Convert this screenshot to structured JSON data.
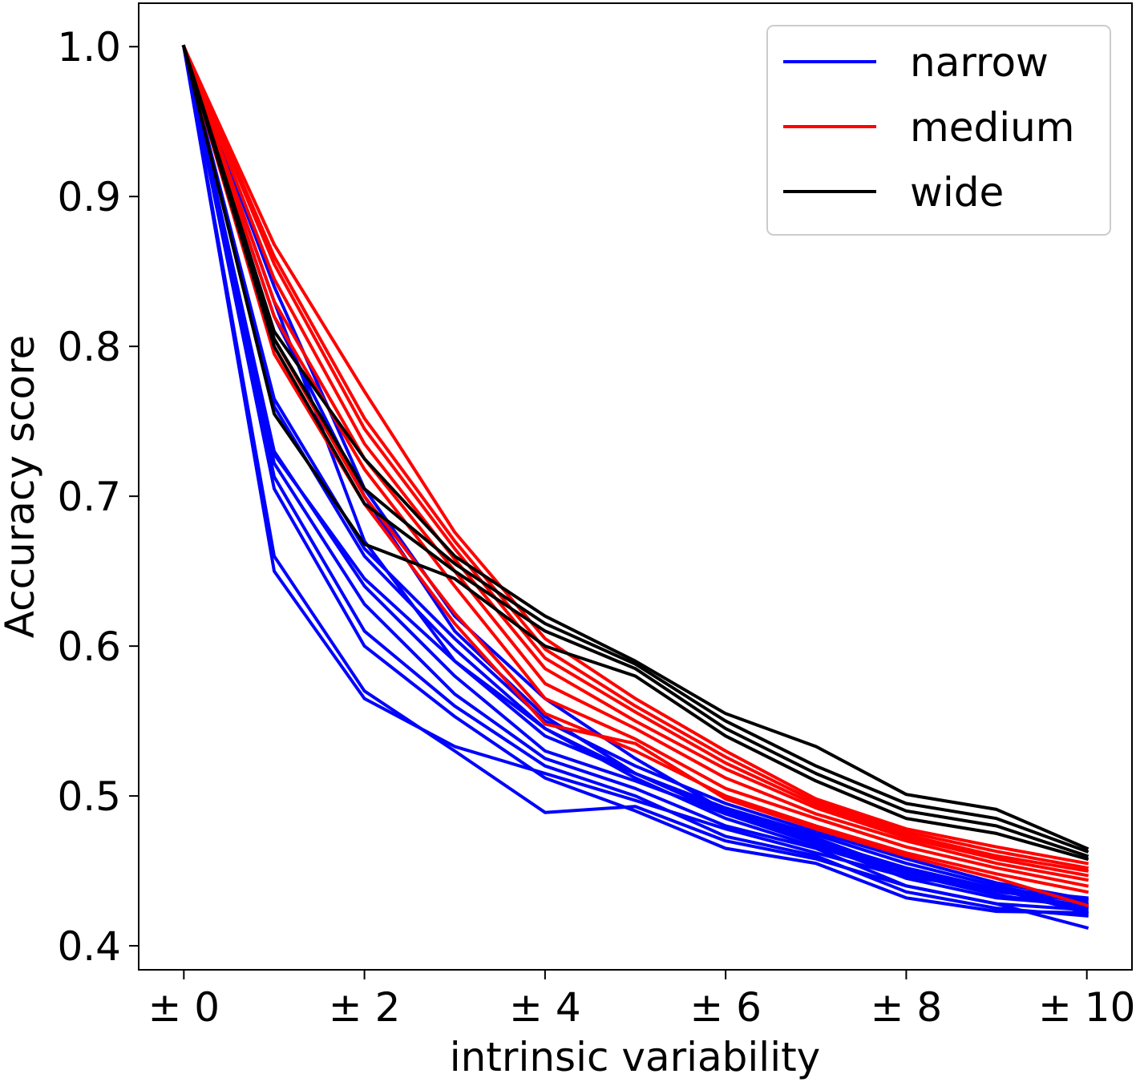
{
  "chart_data": {
    "type": "line",
    "xlabel": "intrinsic variability",
    "ylabel": "Accuracy score",
    "x": [
      0,
      1,
      2,
      3,
      4,
      5,
      6,
      7,
      8,
      9,
      10
    ],
    "xlim": [
      -0.5,
      10.5
    ],
    "ylim": [
      0.384,
      1.029
    ],
    "x_ticks": [
      0,
      2,
      4,
      6,
      8,
      10
    ],
    "x_tick_labels": [
      "± 0",
      "± 2",
      "± 4",
      "± 6",
      "± 8",
      "± 10"
    ],
    "y_ticks": [
      0.4,
      0.5,
      0.6,
      0.7,
      0.8,
      0.9,
      1.0
    ],
    "y_tick_labels": [
      "0.4",
      "0.5",
      "0.6",
      "0.7",
      "0.8",
      "0.9",
      "1.0"
    ],
    "grid": false,
    "legend": {
      "position": "top-right",
      "entries": [
        {
          "label": "narrow",
          "color": "#0000ff"
        },
        {
          "label": "medium",
          "color": "#ff0000"
        },
        {
          "label": "wide",
          "color": "#000000"
        }
      ]
    },
    "series": [
      {
        "group": "narrow",
        "color": "#0000ff",
        "values": [
          1.0,
          0.65,
          0.565,
          0.533,
          0.515,
          0.497,
          0.478,
          0.462,
          0.446,
          0.438,
          0.432
        ]
      },
      {
        "group": "narrow",
        "color": "#0000ff",
        "values": [
          1.0,
          0.66,
          0.57,
          0.53,
          0.489,
          0.493,
          0.47,
          0.458,
          0.44,
          0.428,
          0.424
        ]
      },
      {
        "group": "narrow",
        "color": "#0000ff",
        "values": [
          1.0,
          0.705,
          0.6,
          0.553,
          0.512,
          0.49,
          0.465,
          0.455,
          0.432,
          0.423,
          0.422
        ]
      },
      {
        "group": "narrow",
        "color": "#0000ff",
        "values": [
          1.0,
          0.713,
          0.61,
          0.56,
          0.52,
          0.5,
          0.473,
          0.46,
          0.436,
          0.425,
          0.42
        ]
      },
      {
        "group": "narrow",
        "color": "#0000ff",
        "values": [
          1.0,
          0.722,
          0.628,
          0.568,
          0.525,
          0.505,
          0.48,
          0.465,
          0.44,
          0.428,
          0.412
        ]
      },
      {
        "group": "narrow",
        "color": "#0000ff",
        "values": [
          1.0,
          0.73,
          0.64,
          0.58,
          0.53,
          0.51,
          0.488,
          0.468,
          0.445,
          0.432,
          0.427
        ]
      },
      {
        "group": "narrow",
        "color": "#0000ff",
        "values": [
          1.0,
          0.728,
          0.645,
          0.59,
          0.54,
          0.515,
          0.49,
          0.472,
          0.45,
          0.436,
          0.43
        ]
      },
      {
        "group": "narrow",
        "color": "#0000ff",
        "values": [
          1.0,
          0.76,
          0.66,
          0.598,
          0.545,
          0.515,
          0.492,
          0.474,
          0.455,
          0.44,
          0.428
        ]
      },
      {
        "group": "narrow",
        "color": "#0000ff",
        "values": [
          1.0,
          0.765,
          0.665,
          0.605,
          0.55,
          0.52,
          0.495,
          0.476,
          0.458,
          0.442,
          0.431
        ]
      },
      {
        "group": "narrow",
        "color": "#0000ff",
        "values": [
          1.0,
          0.82,
          0.7,
          0.61,
          0.553,
          0.515,
          0.488,
          0.47,
          0.452,
          0.438,
          0.422
        ]
      },
      {
        "group": "narrow",
        "color": "#0000ff",
        "values": [
          1.0,
          0.83,
          0.67,
          0.59,
          0.545,
          0.512,
          0.485,
          0.466,
          0.448,
          0.434,
          0.425
        ]
      },
      {
        "group": "narrow",
        "color": "#0000ff",
        "values": [
          1.0,
          0.84,
          0.705,
          0.62,
          0.565,
          0.525,
          0.49,
          0.468,
          0.45,
          0.437,
          0.426
        ]
      },
      {
        "group": "medium",
        "color": "#ff0000",
        "values": [
          1.0,
          0.795,
          0.695,
          0.615,
          0.548,
          0.535,
          0.498,
          0.478,
          0.46,
          0.445,
          0.427
        ]
      },
      {
        "group": "medium",
        "color": "#ff0000",
        "values": [
          1.0,
          0.805,
          0.7,
          0.622,
          0.555,
          0.53,
          0.5,
          0.48,
          0.462,
          0.448,
          0.436
        ]
      },
      {
        "group": "medium",
        "color": "#ff0000",
        "values": [
          1.0,
          0.82,
          0.718,
          0.64,
          0.565,
          0.538,
          0.505,
          0.485,
          0.466,
          0.452,
          0.44
        ]
      },
      {
        "group": "medium",
        "color": "#ff0000",
        "values": [
          1.0,
          0.83,
          0.725,
          0.65,
          0.575,
          0.545,
          0.512,
          0.488,
          0.47,
          0.455,
          0.444
        ]
      },
      {
        "group": "medium",
        "color": "#ff0000",
        "values": [
          1.0,
          0.845,
          0.735,
          0.658,
          0.585,
          0.55,
          0.518,
          0.492,
          0.472,
          0.458,
          0.447
        ]
      },
      {
        "group": "medium",
        "color": "#ff0000",
        "values": [
          1.0,
          0.855,
          0.745,
          0.665,
          0.592,
          0.556,
          0.522,
          0.494,
          0.474,
          0.46,
          0.45
        ]
      },
      {
        "group": "medium",
        "color": "#ff0000",
        "values": [
          1.0,
          0.86,
          0.752,
          0.67,
          0.598,
          0.56,
          0.526,
          0.496,
          0.476,
          0.463,
          0.452
        ]
      },
      {
        "group": "medium",
        "color": "#ff0000",
        "values": [
          1.0,
          0.868,
          0.77,
          0.676,
          0.605,
          0.565,
          0.53,
          0.498,
          0.478,
          0.466,
          0.455
        ]
      },
      {
        "group": "wide",
        "color": "#000000",
        "values": [
          1.0,
          0.755,
          0.668,
          0.645,
          0.6,
          0.58,
          0.54,
          0.51,
          0.485,
          0.475,
          0.458
        ]
      },
      {
        "group": "wide",
        "color": "#000000",
        "values": [
          1.0,
          0.8,
          0.695,
          0.65,
          0.61,
          0.585,
          0.545,
          0.515,
          0.49,
          0.48,
          0.46
        ]
      },
      {
        "group": "wide",
        "color": "#000000",
        "values": [
          1.0,
          0.805,
          0.705,
          0.655,
          0.615,
          0.588,
          0.55,
          0.52,
          0.495,
          0.485,
          0.463
        ]
      },
      {
        "group": "wide",
        "color": "#000000",
        "values": [
          1.0,
          0.81,
          0.725,
          0.66,
          0.62,
          0.59,
          0.555,
          0.533,
          0.501,
          0.491,
          0.465
        ]
      }
    ]
  }
}
